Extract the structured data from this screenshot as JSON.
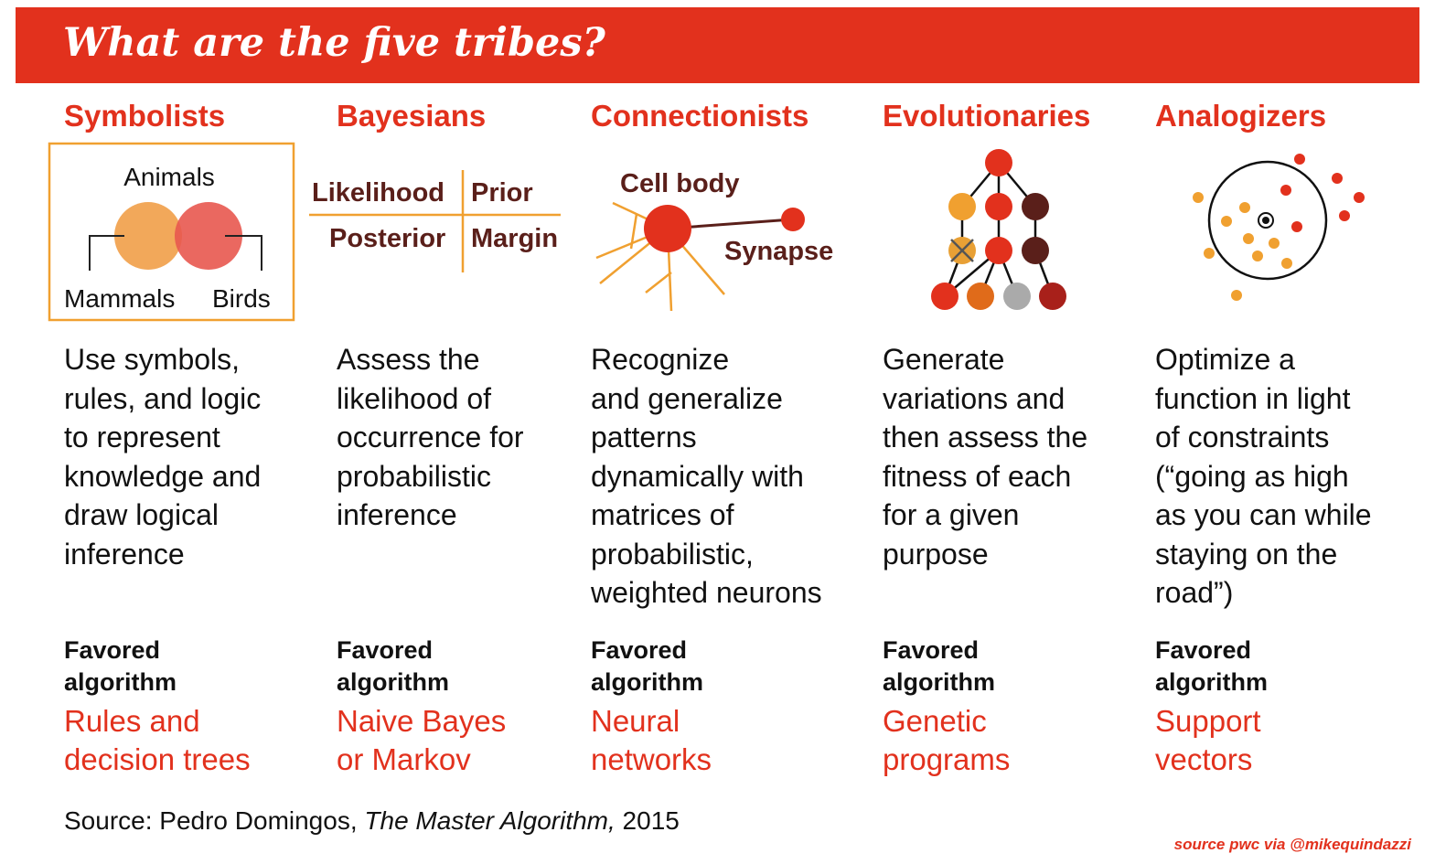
{
  "header": {
    "title": "What are the five tribes?"
  },
  "favored_label_lines": [
    "Favored",
    "algorithm"
  ],
  "tribes": [
    {
      "name": "Symbolists",
      "illustration": {
        "top": "Animals",
        "left": "Mammals",
        "right": "Birds"
      },
      "description": [
        "Use symbols,",
        "rules, and logic",
        "to represent",
        "knowledge and",
        "draw logical",
        "inference"
      ],
      "algorithm": [
        "Rules and",
        "decision trees"
      ]
    },
    {
      "name": "Bayesians",
      "illustration": {
        "top_left": "Likelihood",
        "top_right": "Prior",
        "bottom_left": "Posterior",
        "bottom_right": "Margin"
      },
      "description": [
        "Assess the",
        "likelihood of",
        "occurrence for",
        "probabilistic",
        "inference"
      ],
      "algorithm": [
        "Naive Bayes",
        "or Markov"
      ]
    },
    {
      "name": "Connectionists",
      "illustration": {
        "cell": "Cell body",
        "synapse": "Synapse"
      },
      "description": [
        "Recognize",
        "and generalize",
        "patterns",
        "dynamically with",
        "matrices of",
        "probabilistic,",
        "weighted neurons"
      ],
      "algorithm": [
        "Neural",
        "networks"
      ]
    },
    {
      "name": "Evolutionaries",
      "description": [
        "Generate",
        "variations and",
        "then assess the",
        "fitness of each",
        "for a given",
        "purpose"
      ],
      "algorithm": [
        "Genetic",
        "programs"
      ]
    },
    {
      "name": "Analogizers",
      "description": [
        "Optimize a",
        "function in light",
        "of constraints",
        "(“going as high",
        "as you can while",
        "staying on the",
        "road”)"
      ],
      "algorithm": [
        "Support",
        "vectors"
      ]
    }
  ],
  "footer": {
    "source_prefix": "Source: Pedro Domingos, ",
    "source_title": "The Master Algorithm,",
    "source_year": " 2015",
    "credit": "source pwc via @mikequindazzi"
  },
  "colors": {
    "brand_red": "#e2311d",
    "orange": "#f0a030",
    "dark_brown": "#5a1f1a",
    "coral": "#e8584f",
    "peach": "#f2a85a"
  }
}
